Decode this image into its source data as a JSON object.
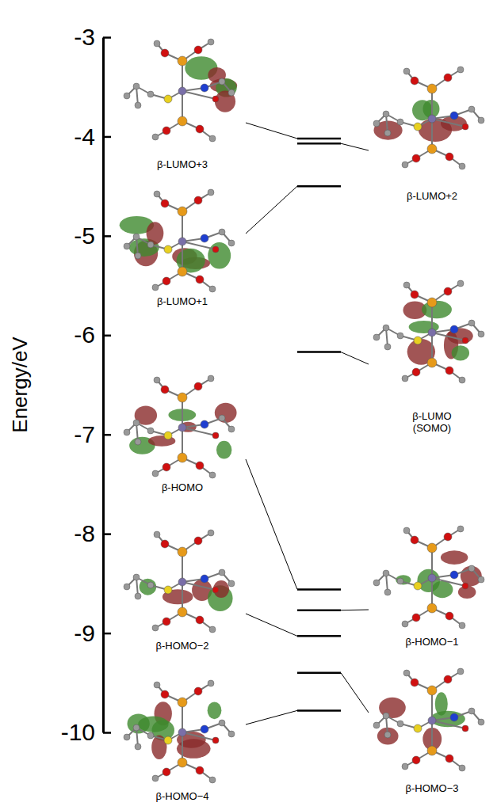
{
  "chart_data": {
    "type": "energy_levels",
    "y_label": "Energy/eV",
    "ylim": [
      -10,
      -3
    ],
    "yticks": [
      -10,
      -9,
      -8,
      -7,
      -6,
      -5,
      -4,
      -3
    ],
    "categories": [
      "β-LUMO+3",
      "β-LUMO+2",
      "β-LUMO+1",
      "β-LUMO (SOMO)",
      "β-HOMO",
      "β-HOMO−1",
      "β-HOMO−2",
      "β-HOMO−3",
      "β-HOMO−4"
    ],
    "values": [
      -4.02,
      -4.07,
      -4.5,
      -6.17,
      -8.56,
      -8.77,
      -9.03,
      -9.4,
      -9.78
    ],
    "color": "#000000"
  }
}
